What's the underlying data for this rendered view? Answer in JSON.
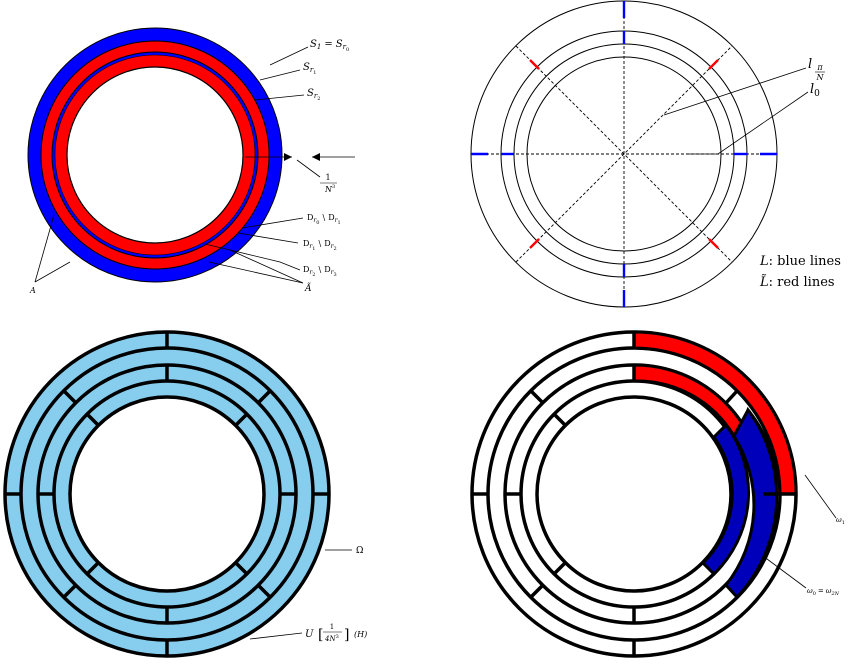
{
  "panel_tl": {
    "labels": {
      "s1_lhs": "S",
      "s1_lhs_sub": "1",
      "s1_eq": "=",
      "s1_rhs": "S",
      "s1_rhs_sub": "r",
      "s1_rhs_subsub": "0",
      "sr1": "S",
      "sr1_sub": "r",
      "sr1_subsub": "1",
      "sr2": "S",
      "sr2_sub": "r",
      "sr2_subsub": "2",
      "frac_num": "1",
      "frac_den": "N",
      "frac_den_pow": "3",
      "d01_a": "D",
      "d01_a_sub": "r",
      "d01_a_subsub": "0",
      "d01_sep": "\\",
      "d01_b": "D",
      "d01_b_sub": "r",
      "d01_b_subsub": "1",
      "d12_a": "D",
      "d12_a_sub": "r",
      "d12_a_subsub": "1",
      "d12_sep": "\\",
      "d12_b": "D",
      "d12_b_sub": "r",
      "d12_b_subsub": "2",
      "d23_a": "D",
      "d23_a_sub": "r",
      "d23_a_subsub": "2",
      "d23_sep": "\\",
      "d23_b": "D",
      "d23_b_sub": "r",
      "d23_b_subsub": "3",
      "a": "A",
      "a_tilde": "Ã"
    },
    "colors": {
      "blue": "#0000ff",
      "red": "#ff0000"
    }
  },
  "panel_tr": {
    "labels": {
      "l_pi_n": "l",
      "l_pi_n_num": "π",
      "l_pi_n_den": "N",
      "l0": "l",
      "l0_sub": "0",
      "legend_L": "L",
      "legend_L_text": ": blue lines",
      "legend_Lt": "L̃",
      "legend_Lt_text": ": red lines"
    },
    "colors": {
      "blue": "#0000ff",
      "red": "#ff0000"
    }
  },
  "panel_bl": {
    "labels": {
      "omega": "Ω",
      "u_lhs": "U",
      "u_num": "1",
      "u_den": "4N",
      "u_den_pow": "3",
      "u_rhs": "(H)"
    },
    "colors": {
      "fill": "#87ceee"
    }
  },
  "panel_br": {
    "labels": {
      "omega1": "ω",
      "omega1_sub": "1",
      "omega0": "ω",
      "omega0_sub": "0",
      "omega0_eq": "=",
      "omega2n": "ω",
      "omega2n_sub": "2N"
    },
    "colors": {
      "blue": "#0000ff",
      "red": "#ff0000",
      "dark_blue": "#0000aa",
      "dark_red": "#cc0000"
    }
  }
}
